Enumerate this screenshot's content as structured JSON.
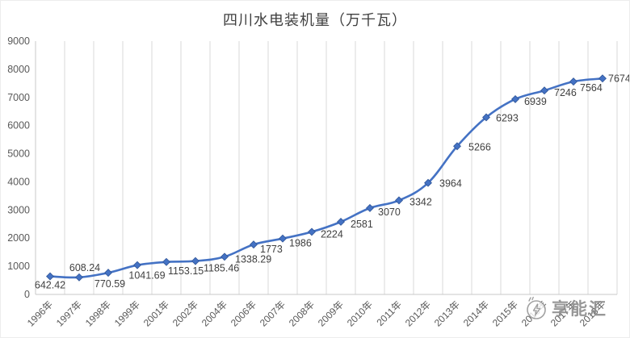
{
  "chart_data": {
    "type": "line",
    "title": "四川水电装机量（万千瓦）",
    "categories": [
      "1996年",
      "1997年",
      "1998年",
      "1999年",
      "2001年",
      "2002年",
      "2004年",
      "2006年",
      "2007年",
      "2008年",
      "2009年",
      "2010年",
      "2011年",
      "2012年",
      "2013年",
      "2014年",
      "2015年",
      "2016年",
      "2017年",
      "2018年"
    ],
    "values": [
      642.42,
      608.24,
      770.59,
      1041.69,
      1153.15,
      1185.46,
      1338.29,
      1773,
      1986,
      2224,
      2581,
      3070,
      3342,
      3964,
      5266,
      6293,
      6939,
      7246,
      7564,
      7674
    ],
    "value_labels": [
      "642.42",
      "608.24",
      "770.59",
      "1041.69",
      "1153.15",
      "1185.46",
      "1338.29",
      "1773",
      "1986",
      "2224",
      "2581",
      "3070",
      "3342",
      "3964",
      "5266",
      "6293",
      "6939",
      "7246",
      "7564",
      "7674"
    ],
    "xlabel": "",
    "ylabel": "",
    "ylim": [
      0,
      9000
    ],
    "ytick_interval": 1000,
    "ytick_labels": [
      "0",
      "1000",
      "2000",
      "3000",
      "4000",
      "5000",
      "6000",
      "7000",
      "8000",
      "9000"
    ],
    "grid": "vertical-major-only",
    "legend": "none",
    "smooth_line": true,
    "marker": "diamond",
    "x_label_rotation_deg": -45,
    "colors": {
      "line": "#4472C4",
      "marker": "#4472C4",
      "marker_stroke": "#2f5597",
      "grid": "#d9d9d9",
      "axis": "#c9c9c9",
      "tick_text": "#595959",
      "data_label_text": "#404040",
      "title_text": "#404040"
    },
    "label_offsets": [
      [
        0,
        15,
        "middle"
      ],
      [
        7,
        -8,
        "middle"
      ],
      [
        2,
        18,
        "middle"
      ],
      [
        12,
        17,
        "middle"
      ],
      [
        2,
        15,
        "start"
      ],
      [
        10,
        13,
        "start"
      ],
      [
        13,
        7,
        "start"
      ],
      [
        8,
        10,
        "start"
      ],
      [
        8,
        10,
        "start"
      ],
      [
        11,
        7,
        "start"
      ],
      [
        12,
        7,
        "start"
      ],
      [
        10,
        9,
        "start"
      ],
      [
        13,
        6,
        "start"
      ],
      [
        14,
        5,
        "start"
      ],
      [
        14,
        5,
        "start"
      ],
      [
        12,
        5,
        "start"
      ],
      [
        11,
        7,
        "start"
      ],
      [
        12,
        7,
        "start"
      ],
      [
        8,
        12,
        "start"
      ],
      [
        7,
        4,
        "start"
      ]
    ]
  },
  "watermark": {
    "text": "享能汇",
    "logo": "circle-lightning-icon",
    "color": "#8f8f8f"
  }
}
